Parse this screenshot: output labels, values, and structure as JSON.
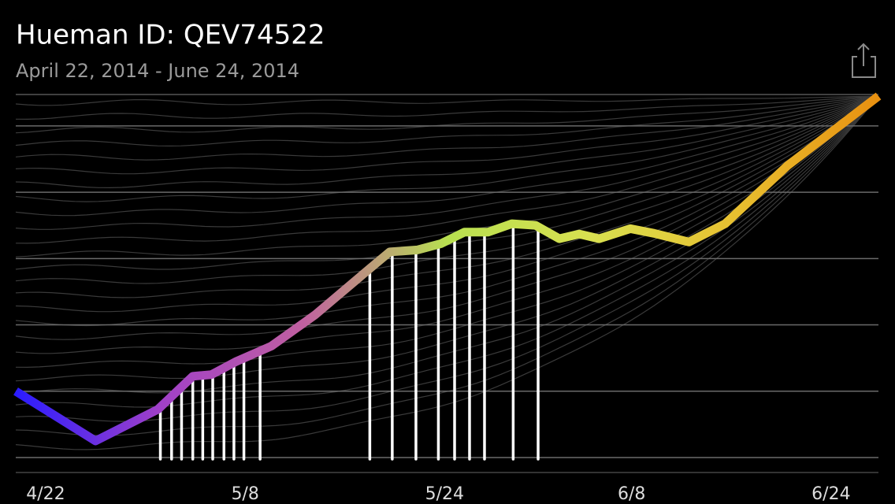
{
  "chart_data": {
    "type": "line",
    "title": "Hueman ID: QEV74522",
    "subtitle": "April 22, 2014 - June 24, 2014",
    "xlim": [
      -2.4,
      66.8
    ],
    "xticks": [
      {
        "value": 0,
        "label": "4/22"
      },
      {
        "value": 16,
        "label": "5/8"
      },
      {
        "value": 32,
        "label": "5/24"
      },
      {
        "value": 47,
        "label": "6/8"
      },
      {
        "value": 63,
        "label": "6/24"
      }
    ],
    "ylim": [
      0,
      109
    ],
    "yticks": [
      0,
      20,
      40,
      60,
      80,
      100
    ],
    "grid": true,
    "gradient": [
      "#2a1cff",
      "#a040c8",
      "#c060a0",
      "#b8e050",
      "#d8e050",
      "#e8c030",
      "#e89010"
    ],
    "series": [
      {
        "x": [
          -2.4,
          4.0,
          9.0,
          11.8,
          13.3,
          15.3,
          18.1,
          21.6,
          26.0,
          27.6,
          29.8,
          31.7,
          33.6,
          35.5,
          37.4,
          39.3,
          41.2,
          42.8,
          44.4,
          46.9,
          48.8,
          51.6,
          54.5,
          59.5,
          66.8
        ],
        "values": [
          20,
          5,
          14.5,
          24.5,
          25,
          29,
          33.6,
          43,
          57,
          62,
          62.6,
          64.5,
          68,
          68,
          70.5,
          70,
          66,
          67.4,
          66,
          69,
          67.6,
          65,
          70.5,
          88,
          109
        ]
      },
      {
        "color": "#ffffff",
        "x": [
          9.2,
          10.1,
          10.9,
          11.8,
          12.6,
          13.4,
          14.3,
          15.1,
          15.9,
          17.2,
          26.0,
          27.8,
          29.7,
          31.5,
          32.8,
          34.0,
          35.2,
          37.5,
          39.5
        ],
        "values": [
          15.7,
          18.6,
          21.2,
          24.0,
          24.8,
          24.8,
          26.4,
          28.1,
          30.0,
          32.4,
          57.4,
          62.1,
          62.1,
          64.0,
          66.4,
          67.6,
          67.4,
          69.8,
          69.3
        ]
      }
    ]
  }
}
